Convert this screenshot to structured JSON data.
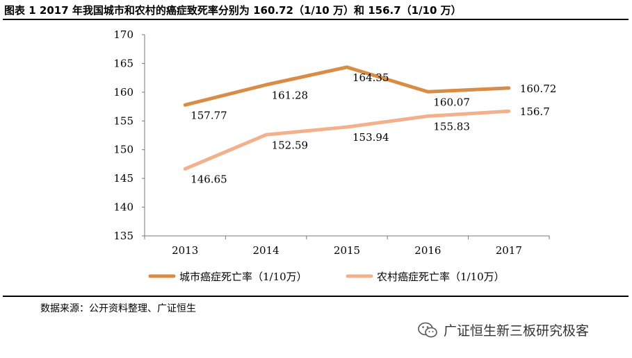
{
  "figure": {
    "title": "图表 1 2017 年我国城市和农村的癌症致死率分别为 160.72（1/10 万）和 156.7（1/10 万）",
    "source": "数据来源：公开资料整理、广证恒生",
    "watermark": "广证恒生新三板研究极客",
    "watermark_icon": "wechat-icon"
  },
  "chart_data": {
    "type": "line",
    "title": "",
    "xlabel": "",
    "ylabel": "",
    "categories": [
      "2013",
      "2014",
      "2015",
      "2016",
      "2017"
    ],
    "ylim": [
      135,
      170
    ],
    "yticks": [
      "135",
      "140",
      "145",
      "150",
      "155",
      "160",
      "165",
      "170"
    ],
    "grid": false,
    "legend_position": "bottom",
    "series": [
      {
        "name": "城市癌症死亡率（1/10万）",
        "values": [
          157.77,
          161.28,
          164.35,
          160.07,
          160.72
        ],
        "labels": [
          "157.77",
          "161.28",
          "164.35",
          "160.07",
          "160.72"
        ],
        "color": "#D98C45"
      },
      {
        "name": "农村癌症死亡率（1/10万）",
        "values": [
          146.65,
          152.59,
          153.94,
          155.83,
          156.7
        ],
        "labels": [
          "146.65",
          "152.59",
          "153.94",
          "155.83",
          "156.7"
        ],
        "color": "#F2B08C"
      }
    ]
  }
}
